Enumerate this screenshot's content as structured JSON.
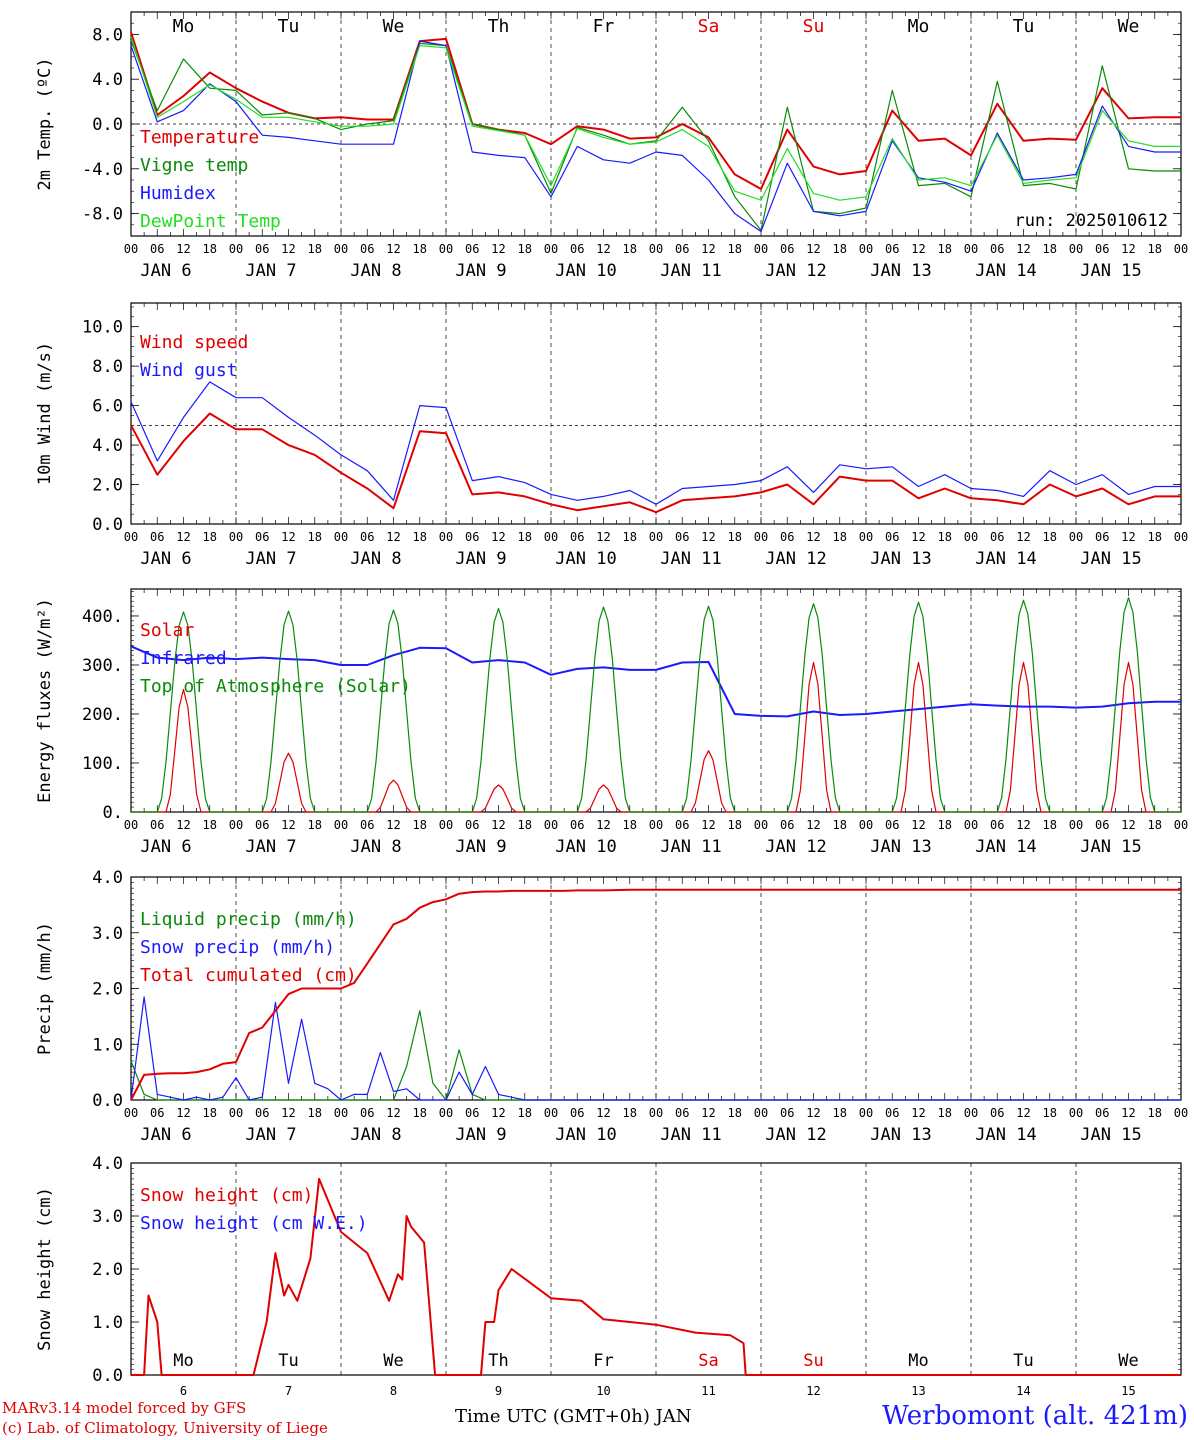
{
  "chart_data": [
    {
      "type": "line",
      "ylabel": "2m Temp. (ºC)",
      "ylim": [
        -10,
        10
      ],
      "yticks": [
        "8.0",
        "4.0",
        "0.0",
        "-4.0",
        "-8.0"
      ],
      "ytick_values": [
        8,
        4,
        0,
        -4,
        -8
      ],
      "reference_line": 0,
      "day_names": [
        "Mo",
        "Tu",
        "We",
        "Th",
        "Fr",
        "Sa",
        "Su",
        "Mo",
        "Tu",
        "We"
      ],
      "run_label": "run: 2025010612",
      "x_hours": [
        0,
        6,
        12,
        18,
        24,
        30,
        36,
        42,
        48,
        54,
        60,
        66,
        72,
        78,
        84,
        90,
        96,
        102,
        108,
        114,
        120,
        126,
        132,
        138,
        144,
        150,
        156,
        162,
        168,
        174,
        180,
        186,
        192,
        198,
        204,
        210,
        216,
        222,
        228,
        234
      ],
      "series": [
        {
          "name": "Temperature",
          "color": "#e00000",
          "values": [
            8.2,
            0.8,
            2.5,
            4.6,
            3.2,
            2.0,
            1.0,
            0.5,
            0.6,
            0.4,
            0.4,
            7.4,
            7.6,
            0.0,
            -0.5,
            -0.8,
            -1.8,
            -0.2,
            -0.5,
            -1.3,
            -1.2,
            0.0,
            -1.2,
            -4.5,
            -5.8,
            -0.5,
            -3.8,
            -4.5,
            -4.2,
            1.2,
            -1.5,
            -1.3,
            -2.8,
            1.8,
            -1.5,
            -1.3,
            -1.4,
            3.2,
            0.5,
            0.6
          ]
        },
        {
          "name": "Vigne temp",
          "color": "#0a8a0a",
          "values": [
            7.5,
            1.2,
            5.8,
            3.2,
            3.0,
            0.8,
            1.0,
            0.5,
            -0.5,
            0.0,
            0.3,
            7.2,
            7.0,
            0.0,
            -0.5,
            -1.0,
            -6.2,
            -0.3,
            -1.0,
            -1.8,
            -1.5,
            1.5,
            -1.5,
            -6.5,
            -9.5,
            1.5,
            -7.8,
            -8.0,
            -7.5,
            3.0,
            -5.5,
            -5.3,
            -6.5,
            3.8,
            -5.5,
            -5.3,
            -5.8,
            5.2,
            -4.0,
            -4.2
          ]
        },
        {
          "name": "Humidex",
          "color": "#1a1aff",
          "values": [
            7.0,
            0.2,
            1.2,
            3.6,
            2.0,
            -1.0,
            -1.2,
            -1.5,
            -1.8,
            -1.8,
            -1.8,
            7.4,
            7.0,
            -2.5,
            -2.8,
            -3.0,
            -6.5,
            -2.0,
            -3.2,
            -3.5,
            -2.5,
            -2.8,
            -5.0,
            -8.0,
            -9.6,
            -3.5,
            -7.8,
            -8.2,
            -7.8,
            -1.5,
            -4.8,
            -5.2,
            -6.0,
            -0.8,
            -5.0,
            -4.8,
            -4.5,
            1.6,
            -2.0,
            -2.5
          ]
        },
        {
          "name": "DewPoint Temp",
          "color": "#22dd22",
          "values": [
            7.8,
            0.6,
            2.0,
            3.5,
            2.2,
            0.6,
            0.6,
            0.2,
            -0.2,
            -0.2,
            0.0,
            7.0,
            6.8,
            -0.2,
            -0.6,
            -1.0,
            -5.5,
            -0.4,
            -1.2,
            -1.8,
            -1.6,
            -0.5,
            -2.0,
            -6.0,
            -6.8,
            -2.2,
            -6.2,
            -6.8,
            -6.5,
            -1.3,
            -5.0,
            -4.8,
            -5.5,
            -1.0,
            -5.3,
            -5.0,
            -4.8,
            1.2,
            -1.5,
            -2.0
          ]
        }
      ]
    },
    {
      "type": "line",
      "ylabel": "10m Wind (m/s)",
      "ylim": [
        0,
        11.2
      ],
      "yticks": [
        "10.0",
        "8.0",
        "6.0",
        "4.0",
        "2.0",
        "0.0"
      ],
      "ytick_values": [
        10,
        8,
        6,
        4,
        2,
        0
      ],
      "reference_line": 5,
      "x_hours": [
        0,
        6,
        12,
        18,
        24,
        30,
        36,
        42,
        48,
        54,
        60,
        66,
        72,
        78,
        84,
        90,
        96,
        102,
        108,
        114,
        120,
        126,
        132,
        138,
        144,
        150,
        156,
        162,
        168,
        174,
        180,
        186,
        192,
        198,
        204,
        210,
        216,
        222,
        228,
        234
      ],
      "series": [
        {
          "name": "Wind speed",
          "color": "#e00000",
          "values": [
            5.0,
            2.5,
            4.2,
            5.6,
            4.8,
            4.8,
            4.0,
            3.5,
            2.6,
            1.8,
            0.8,
            4.7,
            4.6,
            1.5,
            1.6,
            1.4,
            1.0,
            0.7,
            0.9,
            1.1,
            0.6,
            1.2,
            1.3,
            1.4,
            1.6,
            2.0,
            1.0,
            2.4,
            2.2,
            2.2,
            1.3,
            1.8,
            1.3,
            1.2,
            1.0,
            2.0,
            1.4,
            1.8,
            1.0,
            1.4
          ]
        },
        {
          "name": "Wind gust",
          "color": "#1a1aff",
          "values": [
            6.2,
            3.2,
            5.4,
            7.2,
            6.4,
            6.4,
            5.4,
            4.5,
            3.5,
            2.7,
            1.2,
            6.0,
            5.9,
            2.2,
            2.4,
            2.1,
            1.5,
            1.2,
            1.4,
            1.7,
            1.0,
            1.8,
            1.9,
            2.0,
            2.2,
            2.9,
            1.6,
            3.0,
            2.8,
            2.9,
            1.9,
            2.5,
            1.8,
            1.7,
            1.4,
            2.7,
            2.0,
            2.5,
            1.5,
            1.9
          ]
        }
      ]
    },
    {
      "type": "line",
      "ylabel": "Energy fluxes (W/m²)",
      "ylim": [
        0,
        455
      ],
      "yticks": [
        "400.",
        "300.",
        "200.",
        "100.",
        "0."
      ],
      "ytick_values": [
        400,
        300,
        200,
        100,
        0
      ],
      "x_hours": [
        0,
        6,
        12,
        18,
        24,
        30,
        36,
        42,
        48,
        54,
        60,
        66,
        72,
        78,
        84,
        90,
        96,
        102,
        108,
        114,
        120,
        126,
        132,
        138,
        144,
        150,
        156,
        162,
        168,
        174,
        180,
        186,
        192,
        198,
        204,
        210,
        216,
        222,
        228,
        234
      ],
      "series": [
        {
          "name": "Solar",
          "color": "#e00000",
          "peaks": [
            250,
            120,
            65,
            55,
            55,
            125,
            305,
            305,
            305,
            305
          ]
        },
        {
          "name": "Infrared",
          "color": "#1a1aff",
          "values": [
            338,
            315,
            310,
            315,
            312,
            315,
            312,
            310,
            300,
            300,
            320,
            335,
            334,
            305,
            310,
            305,
            280,
            292,
            295,
            290,
            290,
            305,
            306,
            200,
            196,
            195,
            205,
            198,
            200,
            205,
            210,
            215,
            220,
            217,
            215,
            215,
            213,
            215,
            222,
            225
          ]
        },
        {
          "name": "Top of Atmosphere (Solar)",
          "color": "#0a8a0a",
          "peaks": [
            408,
            410,
            412,
            415,
            418,
            420,
            425,
            428,
            432,
            437
          ]
        }
      ]
    },
    {
      "type": "line",
      "ylabel": "Precip (mm/h)",
      "ylim": [
        0,
        4.0
      ],
      "yticks": [
        "4.0",
        "3.0",
        "2.0",
        "1.0",
        "0.0"
      ],
      "ytick_values": [
        4,
        3,
        2,
        1,
        0
      ],
      "x_hours": [
        0,
        3,
        6,
        9,
        12,
        15,
        18,
        21,
        24,
        27,
        30,
        33,
        36,
        39,
        42,
        45,
        48,
        51,
        54,
        57,
        60,
        63,
        66,
        69,
        72,
        75,
        78,
        81,
        84,
        87,
        90,
        93,
        96,
        99,
        102,
        105,
        108,
        114,
        120,
        126,
        132,
        138,
        144,
        150,
        156,
        162,
        168,
        174,
        180,
        186,
        192,
        198,
        204,
        210,
        216,
        222,
        228,
        234
      ],
      "series": [
        {
          "name": "Liquid precip (mm/h)",
          "color": "#0a8a0a",
          "values": [
            0.7,
            0.1,
            0,
            0,
            0,
            0,
            0,
            0,
            0,
            0,
            0,
            0,
            0,
            0,
            0,
            0,
            0,
            0,
            0,
            0,
            0,
            0.6,
            1.6,
            0.3,
            0,
            0.9,
            0.1,
            0,
            0,
            0,
            0,
            0,
            0,
            0,
            0,
            0,
            0,
            0,
            0,
            0,
            0,
            0,
            0,
            0,
            0,
            0,
            0,
            0,
            0,
            0,
            0,
            0,
            0,
            0,
            0,
            0,
            0,
            0
          ]
        },
        {
          "name": "Snow precip (mm/h)",
          "color": "#1a1aff",
          "values": [
            0,
            1.85,
            0.1,
            0.05,
            0,
            0.05,
            0,
            0.05,
            0.4,
            0,
            0.05,
            1.75,
            0.3,
            1.45,
            0.3,
            0.2,
            0,
            0.1,
            0.1,
            0.85,
            0.15,
            0.2,
            0,
            0,
            0,
            0.5,
            0.1,
            0.6,
            0.1,
            0.05,
            0,
            0,
            0,
            0,
            0,
            0,
            0,
            0,
            0,
            0,
            0,
            0,
            0,
            0,
            0,
            0,
            0,
            0,
            0,
            0,
            0,
            0,
            0,
            0,
            0,
            0,
            0,
            0
          ]
        },
        {
          "name": "Total cumulated (cm)",
          "color": "#e00000",
          "values": [
            0,
            0.45,
            0.47,
            0.48,
            0.48,
            0.5,
            0.55,
            0.65,
            0.68,
            1.2,
            1.3,
            1.6,
            1.9,
            2.0,
            2.0,
            2.0,
            2.0,
            2.1,
            2.45,
            2.8,
            3.15,
            3.25,
            3.45,
            3.55,
            3.6,
            3.7,
            3.73,
            3.74,
            3.74,
            3.75,
            3.75,
            3.75,
            3.75,
            3.75,
            3.76,
            3.76,
            3.76,
            3.77,
            3.77,
            3.77,
            3.77,
            3.77,
            3.77,
            3.77,
            3.77,
            3.77,
            3.77,
            3.77,
            3.77,
            3.77,
            3.77,
            3.77,
            3.77,
            3.77,
            3.77,
            3.77,
            3.77,
            3.77
          ]
        }
      ]
    },
    {
      "type": "line",
      "ylabel": "Snow height (cm)",
      "ylim": [
        0,
        4.0
      ],
      "yticks": [
        "4.0",
        "3.0",
        "2.0",
        "1.0",
        "0.0"
      ],
      "ytick_values": [
        4,
        3,
        2,
        1,
        0
      ],
      "day_names": [
        "Mo",
        "Tu",
        "We",
        "Th",
        "Fr",
        "Sa",
        "Su",
        "Mo",
        "Tu",
        "We"
      ],
      "day_numbers": [
        "6",
        "7",
        "8",
        "9",
        "10",
        "11",
        "12",
        "13",
        "14",
        "15"
      ],
      "x_hours": [
        0,
        3,
        4,
        6,
        7,
        9,
        12,
        28,
        31,
        33,
        35,
        36,
        38,
        41,
        43,
        48,
        54,
        59,
        61,
        62,
        63,
        64,
        67,
        69,
        69.5,
        72,
        80,
        81,
        83,
        84,
        87,
        96,
        103,
        108,
        114,
        120,
        129,
        137,
        140,
        140.5,
        234
      ],
      "series": [
        {
          "name": "Snow height (cm)",
          "color": "#e00000",
          "values": [
            0,
            0,
            1.5,
            1.0,
            0,
            0,
            0,
            0,
            1.0,
            2.3,
            1.5,
            1.7,
            1.4,
            2.2,
            3.7,
            2.7,
            2.3,
            1.4,
            1.9,
            1.8,
            3.0,
            2.8,
            2.5,
            0.5,
            0,
            0,
            0,
            1.0,
            1.0,
            1.6,
            2.0,
            1.45,
            1.4,
            1.05,
            1.0,
            0.95,
            0.8,
            0.75,
            0.6,
            0,
            0
          ]
        },
        {
          "name": "Snow height (cm W.E.)",
          "color": "#1a1aff",
          "values": []
        }
      ]
    }
  ],
  "x_axis": {
    "hour_ticks": [
      "00",
      "06",
      "12",
      "18"
    ],
    "date_labels": [
      "JAN  6",
      "JAN  7",
      "JAN  8",
      "JAN  9",
      "JAN 10",
      "JAN 11",
      "JAN 12",
      "JAN 13",
      "JAN 14",
      "JAN 15"
    ],
    "weekend_color": "#e00000"
  },
  "footer": {
    "credit_line1": "MARv3.14 model forced by GFS",
    "credit_line2": "(c) Lab. of Climatology, University of Liege",
    "xlabel": "Time UTC (GMT+0h) JAN",
    "station": "Werbomont (alt. 421m)"
  }
}
